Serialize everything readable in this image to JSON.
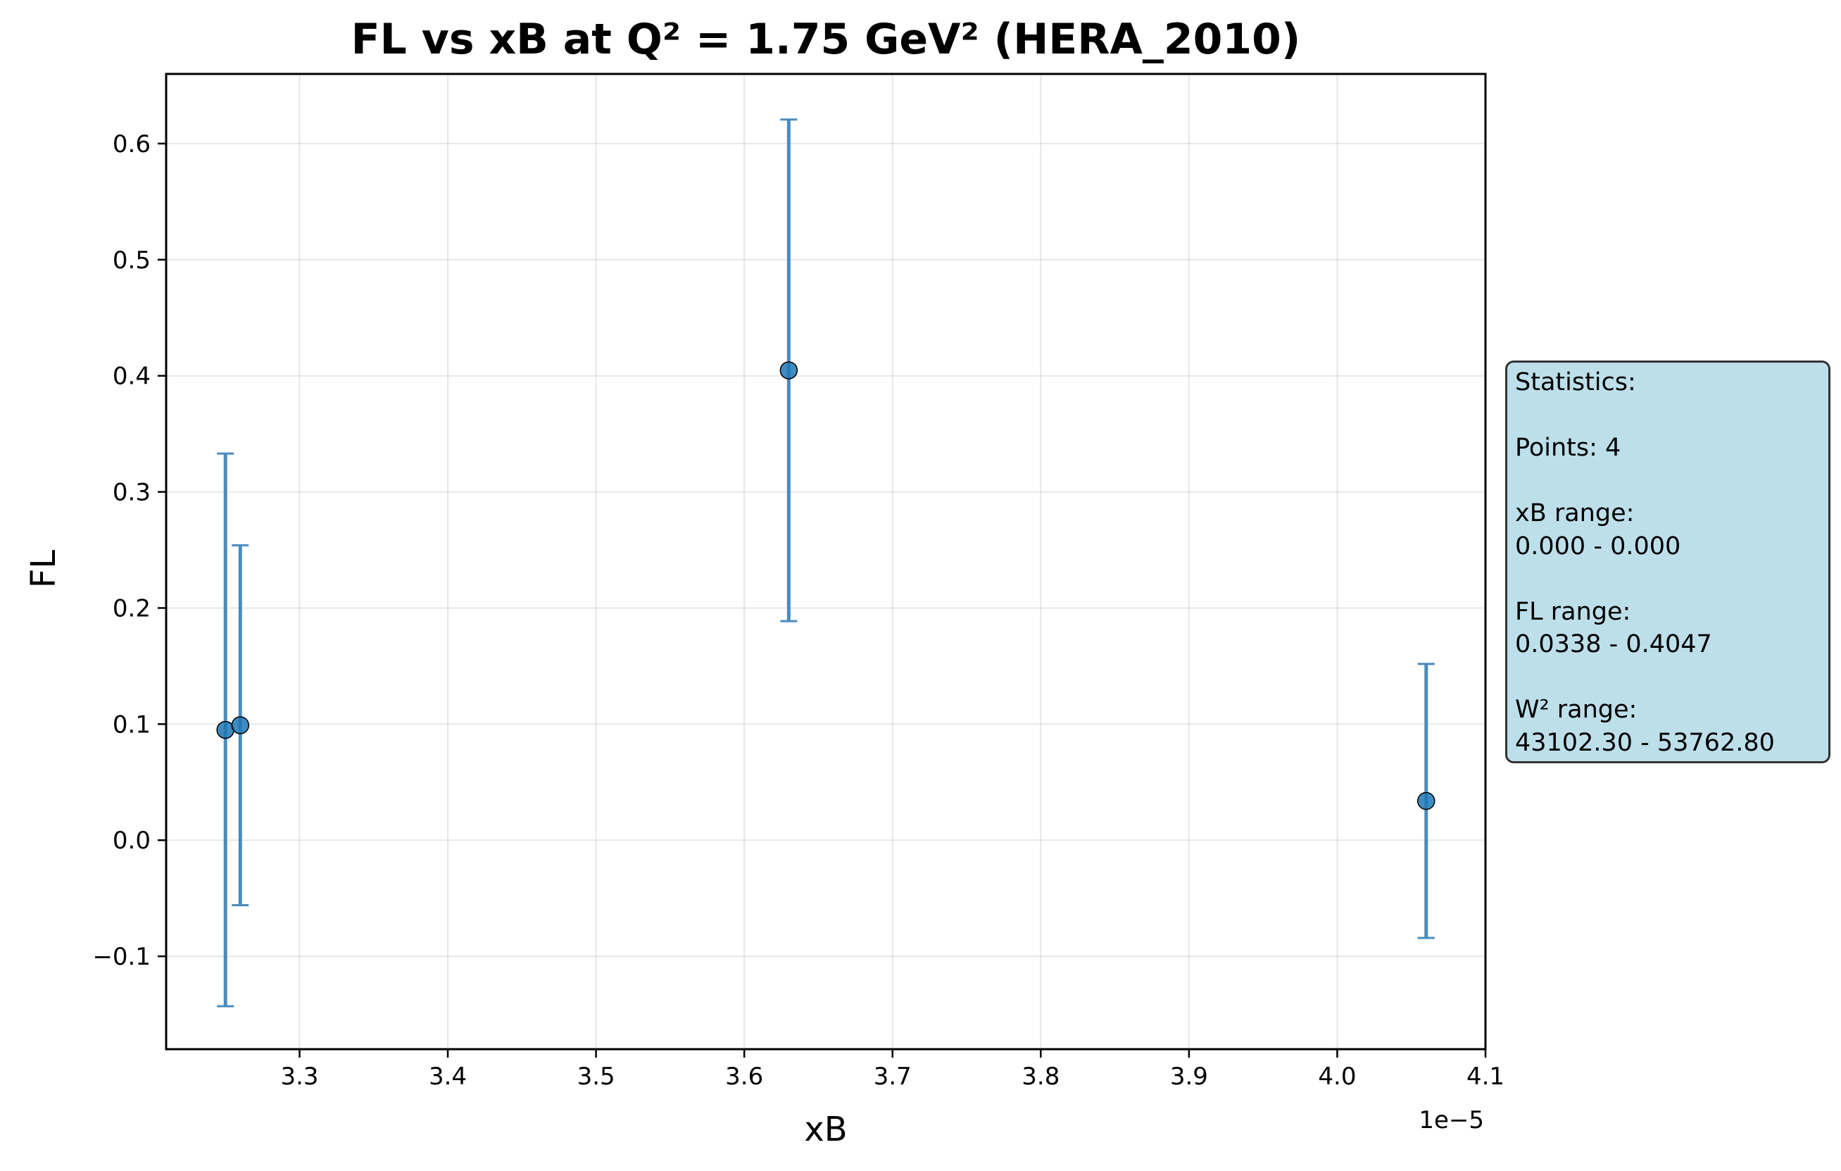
{
  "chart_data": {
    "type": "scatter",
    "title": "FL vs xB at Q² = 1.75 GeV² (HERA_2010)",
    "xlabel": "xB",
    "ylabel": "FL",
    "x_offset_label": "1e−5",
    "xlim": [
      3.21e-05,
      4.1e-05
    ],
    "ylim": [
      -0.18,
      0.66
    ],
    "x_ticks": [
      3.3e-05,
      3.4e-05,
      3.5e-05,
      3.6e-05,
      3.7e-05,
      3.8e-05,
      3.9e-05,
      4e-05,
      4.1e-05
    ],
    "x_tick_labels": [
      "3.3",
      "3.4",
      "3.5",
      "3.6",
      "3.7",
      "3.8",
      "3.9",
      "4.0",
      "4.1"
    ],
    "y_ticks": [
      -0.1,
      0.0,
      0.1,
      0.2,
      0.3,
      0.4,
      0.5,
      0.6
    ],
    "y_tick_labels": [
      "−0.1",
      "0.0",
      "0.1",
      "0.2",
      "0.3",
      "0.4",
      "0.5",
      "0.6"
    ],
    "grid": true,
    "series": [
      {
        "x": [
          3.25e-05,
          3.26e-05,
          3.63e-05,
          4.06e-05
        ],
        "y": [
          0.095,
          0.099,
          0.4047,
          0.0338
        ],
        "yerr": [
          0.238,
          0.155,
          0.216,
          0.118
        ],
        "color": "#1f77b4",
        "errcolor": "#4a8bbf"
      }
    ]
  },
  "stats_box": {
    "lines": [
      "Statistics:",
      "",
      "Points: 4",
      "",
      "xB range:",
      "0.000 - 0.000",
      "",
      "FL range:",
      "0.0338 - 0.4047",
      "",
      "W² range:",
      "43102.30 - 53762.80"
    ]
  }
}
